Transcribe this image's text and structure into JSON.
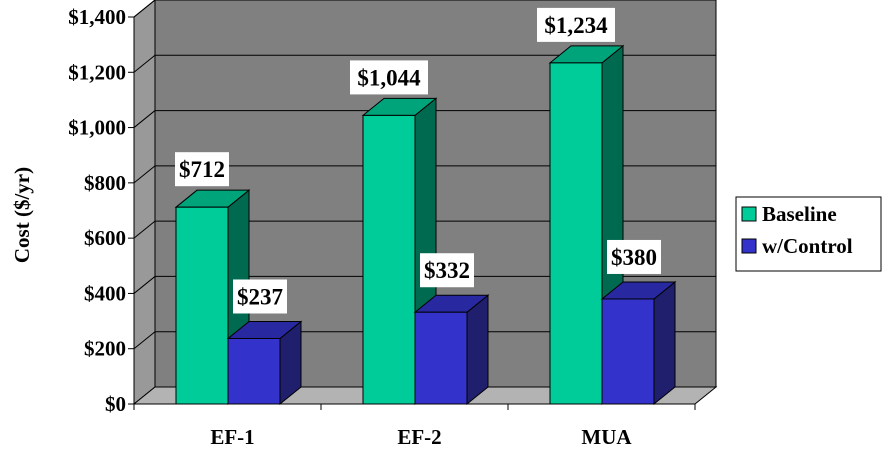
{
  "chart_data": {
    "type": "bar",
    "title": "",
    "xlabel": "",
    "ylabel": "Cost ($/yr)",
    "categories": [
      "EF-1",
      "EF-2",
      "MUA"
    ],
    "series": [
      {
        "name": "Baseline",
        "values": [
          712,
          1044,
          1234
        ],
        "labels": [
          "$712",
          "$1,044",
          "$1,234"
        ]
      },
      {
        "name": "w/Control",
        "values": [
          237,
          332,
          380
        ],
        "labels": [
          "$237",
          "$332",
          "$380"
        ]
      }
    ],
    "ylim": [
      0,
      1400
    ],
    "yticks": [
      0,
      200,
      400,
      600,
      800,
      1000,
      1200,
      1400
    ],
    "ytick_labels": [
      "$0",
      "$200",
      "$400",
      "$600",
      "$800",
      "$1,000",
      "$1,200",
      "$1,400"
    ],
    "grid": true,
    "legend_position": "right",
    "three_d": true,
    "colors": {
      "background_wall": "#808080",
      "floor": "#b3b3b3",
      "series": [
        "#00cc99",
        "#3333cc"
      ],
      "series_side": [
        "#006a50",
        "#1f1f6e"
      ],
      "series_top": [
        "#00a47a",
        "#2828a0"
      ]
    }
  }
}
